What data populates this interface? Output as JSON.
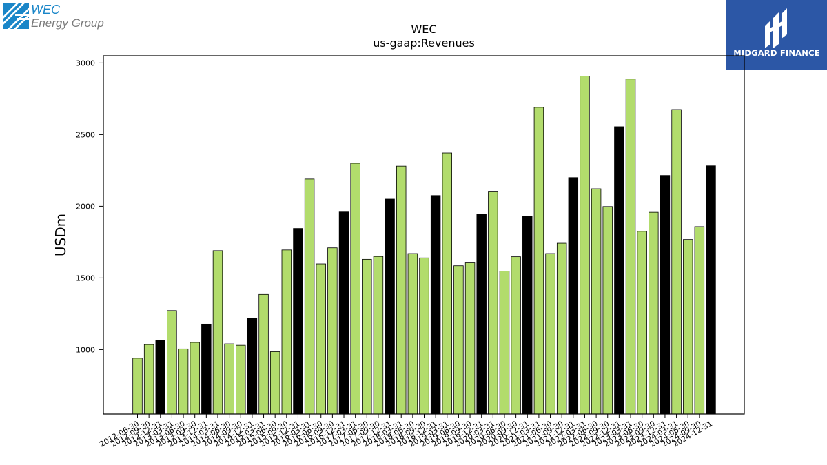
{
  "logos": {
    "company": {
      "line1": "WEC",
      "line2": "Energy Group",
      "color": "#1a86c8"
    },
    "publisher": {
      "name": "MIDGARD FINANCE",
      "background": "#2c57a6"
    }
  },
  "chart_data": {
    "type": "bar",
    "title": "WEC",
    "subtitle": "us-gaap:Revenues",
    "xlabel": "",
    "ylabel": "USDm",
    "ylim": [
      550,
      3050
    ],
    "yticks": [
      1000,
      1500,
      2000,
      2500,
      3000
    ],
    "grid": false,
    "colors": {
      "quarter": "#b2dc6c",
      "fiscal_year_end": "#000000",
      "edge": "#000000"
    },
    "categories": [
      "2012-06-30",
      "2012-09-30",
      "2012-12-31",
      "2013-03-31",
      "2013-06-30",
      "2013-09-30",
      "2013-12-31",
      "2014-03-31",
      "2014-06-30",
      "2014-09-30",
      "2014-12-31",
      "2015-03-31",
      "2015-06-30",
      "2015-09-30",
      "2015-12-31",
      "2016-03-31",
      "2016-06-30",
      "2016-09-30",
      "2016-12-31",
      "2017-03-31",
      "2017-06-30",
      "2017-09-30",
      "2017-12-31",
      "2018-03-31",
      "2018-06-30",
      "2018-09-30",
      "2018-12-31",
      "2019-03-31",
      "2019-06-30",
      "2019-09-30",
      "2019-12-31",
      "2020-03-31",
      "2020-06-30",
      "2020-09-30",
      "2020-12-31",
      "2021-03-31",
      "2021-06-30",
      "2021-09-30",
      "2021-12-31",
      "2022-03-31",
      "2022-06-30",
      "2022-09-30",
      "2022-12-31",
      "2023-03-31",
      "2023-06-30",
      "2023-09-30",
      "2023-12-31",
      "2024-03-31",
      "2024-06-30",
      "2024-09-30",
      "2024-12-31"
    ],
    "values": [
      940,
      1035,
      1065,
      1272,
      1005,
      1050,
      1178,
      1690,
      1040,
      1030,
      1220,
      1385,
      985,
      1695,
      1845,
      2190,
      1598,
      1710,
      1960,
      2300,
      1630,
      1650,
      2050,
      2280,
      1670,
      1640,
      2075,
      2372,
      1585,
      1605,
      1945,
      2105,
      1548,
      1648,
      1930,
      2690,
      1670,
      1742,
      2200,
      2908,
      2122,
      1998,
      2555,
      2888,
      1825,
      1958,
      2215,
      2675,
      1768,
      1858,
      2282
    ],
    "fiscal_year_end": [
      false,
      false,
      true,
      false,
      false,
      false,
      true,
      false,
      false,
      false,
      true,
      false,
      false,
      false,
      true,
      false,
      false,
      false,
      true,
      false,
      false,
      false,
      true,
      false,
      false,
      false,
      true,
      false,
      false,
      false,
      true,
      false,
      false,
      false,
      true,
      false,
      false,
      false,
      true,
      false,
      false,
      false,
      true,
      false,
      false,
      false,
      true,
      false,
      false,
      false,
      true
    ]
  }
}
